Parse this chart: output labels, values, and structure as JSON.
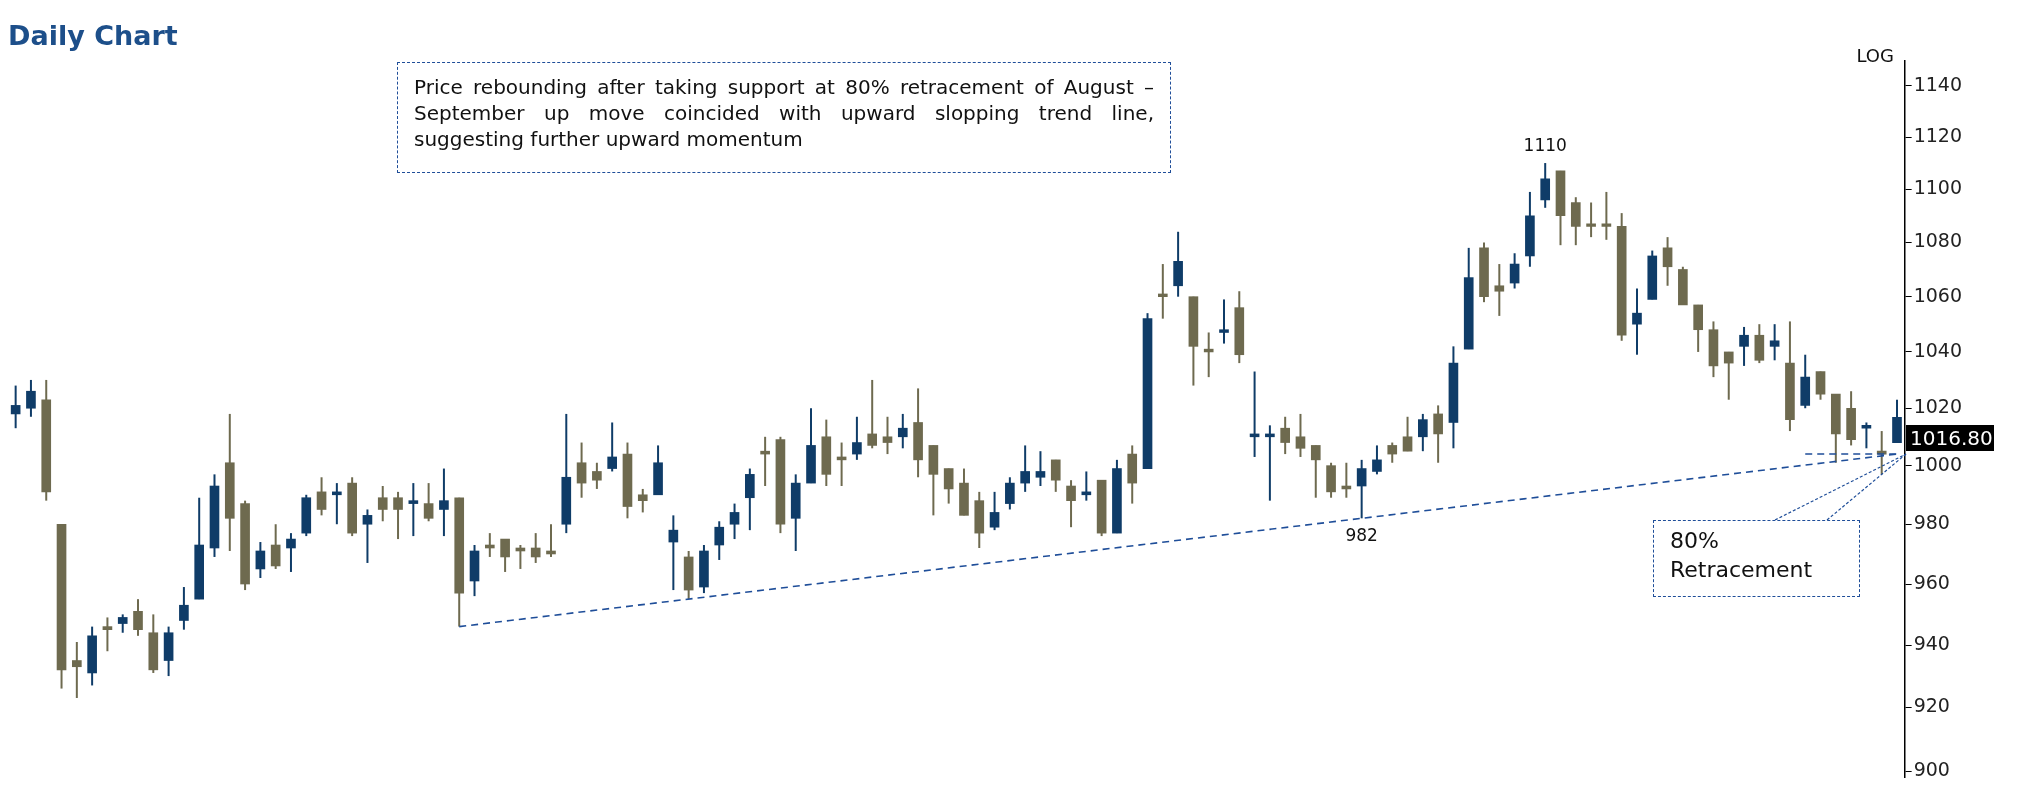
{
  "chart_data": {
    "type": "candlestick",
    "title": "Daily Chart",
    "categories": [
      null,
      null,
      null,
      null,
      null,
      null,
      null,
      null,
      null,
      null,
      null,
      null,
      null,
      null,
      null,
      null,
      null,
      null,
      null,
      null,
      null,
      null,
      null,
      null,
      null,
      null,
      null,
      null,
      null,
      null,
      null,
      null,
      null,
      null,
      null,
      null,
      null,
      null,
      null,
      null,
      null,
      null,
      null,
      null,
      null,
      null,
      null,
      null,
      null,
      null,
      null,
      null,
      null,
      null,
      null,
      null,
      null,
      null,
      null,
      null,
      null,
      null,
      null,
      null,
      null,
      null,
      null,
      null,
      null,
      null,
      null,
      null,
      null,
      null,
      null,
      null,
      null,
      null,
      null,
      null,
      null,
      null,
      null,
      null,
      null,
      null,
      null,
      null,
      null,
      null,
      null,
      null,
      null,
      null,
      null,
      null,
      null,
      null,
      null,
      null,
      null,
      null,
      null,
      null,
      null,
      null,
      null,
      null,
      null,
      null,
      null,
      null,
      null,
      null,
      null,
      null,
      null,
      null,
      null,
      null,
      null,
      null,
      null,
      null
    ],
    "ohlc": [
      [
        1018,
        1028,
        1013,
        1021
      ],
      [
        1020,
        1030,
        1017,
        1026
      ],
      [
        1023,
        1030,
        988,
        991
      ],
      [
        980,
        980,
        926,
        932
      ],
      [
        935,
        941,
        923,
        933
      ],
      [
        931,
        946,
        927,
        943
      ],
      [
        946,
        949,
        938,
        945
      ],
      [
        947,
        950,
        944,
        949
      ],
      [
        951,
        955,
        943,
        945
      ],
      [
        944,
        950,
        931,
        932
      ],
      [
        935,
        946,
        930,
        944
      ],
      [
        948,
        959,
        945,
        953
      ],
      [
        955,
        989,
        955,
        973
      ],
      [
        972,
        997,
        969,
        993
      ],
      [
        1001,
        1018,
        971,
        982
      ],
      [
        987,
        988,
        958,
        960
      ],
      [
        965,
        974,
        962,
        971
      ],
      [
        973,
        980,
        965,
        966
      ],
      [
        972,
        977,
        964,
        975
      ],
      [
        977,
        990,
        976,
        989
      ],
      [
        991,
        996,
        983,
        985
      ],
      [
        990,
        994,
        980,
        991
      ],
      [
        994,
        996,
        976,
        977
      ],
      [
        980,
        985,
        967,
        983
      ],
      [
        989,
        993,
        981,
        985
      ],
      [
        989,
        991,
        975,
        985
      ],
      [
        987,
        994,
        976,
        988
      ],
      [
        987,
        994,
        981,
        982
      ],
      [
        985,
        999,
        976,
        988
      ],
      [
        989,
        989,
        946,
        957
      ],
      [
        961,
        973,
        956,
        971
      ],
      [
        973,
        977,
        969,
        972
      ],
      [
        975,
        975,
        964,
        969
      ],
      [
        972,
        973,
        965,
        971
      ],
      [
        972,
        977,
        967,
        969
      ],
      [
        971,
        980,
        969,
        970
      ],
      [
        980,
        1018,
        977,
        996
      ],
      [
        1001,
        1008,
        989,
        994
      ],
      [
        998,
        1001,
        992,
        995
      ],
      [
        999,
        1015,
        998,
        1003
      ],
      [
        1004,
        1008,
        982,
        986
      ],
      [
        990,
        992,
        984,
        988
      ],
      [
        990,
        1007,
        990,
        1001
      ],
      [
        974,
        983,
        958,
        978
      ],
      [
        969,
        971,
        955,
        958
      ],
      [
        959,
        973,
        957,
        971
      ],
      [
        973,
        981,
        968,
        979
      ],
      [
        980,
        987,
        975,
        984
      ],
      [
        989,
        999,
        978,
        997
      ],
      [
        1005,
        1010,
        993,
        1004
      ],
      [
        1009,
        1010,
        977,
        980
      ],
      [
        982,
        997,
        971,
        994
      ],
      [
        994,
        1020,
        994,
        1007
      ],
      [
        1010,
        1016,
        993,
        997
      ],
      [
        1003,
        1008,
        993,
        1002
      ],
      [
        1004,
        1017,
        1002,
        1008
      ],
      [
        1011,
        1030,
        1006,
        1007
      ],
      [
        1010,
        1017,
        1004,
        1008
      ],
      [
        1010,
        1018,
        1006,
        1013
      ],
      [
        1015,
        1027,
        996,
        1002
      ],
      [
        1007,
        1007,
        983,
        997
      ],
      [
        999,
        999,
        987,
        992
      ],
      [
        994,
        999,
        983,
        983
      ],
      [
        988,
        991,
        972,
        977
      ],
      [
        979,
        991,
        978,
        984
      ],
      [
        987,
        996,
        985,
        994
      ],
      [
        994,
        1007,
        991,
        998
      ],
      [
        996,
        1005,
        993,
        998
      ],
      [
        1002,
        1002,
        991,
        995
      ],
      [
        993,
        995,
        979,
        988
      ],
      [
        990,
        998,
        988,
        991
      ],
      [
        995,
        995,
        976,
        977
      ],
      [
        977,
        1002,
        977,
        999
      ],
      [
        1004,
        1007,
        987,
        994
      ],
      [
        999,
        1054,
        999,
        1052
      ],
      [
        1061,
        1072,
        1052,
        1060
      ],
      [
        1064,
        1084,
        1060,
        1073
      ],
      [
        1060,
        1060,
        1028,
        1042
      ],
      [
        1041,
        1047,
        1031,
        1040
      ],
      [
        1047,
        1059,
        1043,
        1048
      ],
      [
        1056,
        1062,
        1036,
        1039
      ],
      [
        1010,
        1033,
        1003,
        1011
      ],
      [
        1010,
        1014,
        988,
        1011
      ],
      [
        1013,
        1017,
        1004,
        1008
      ],
      [
        1010,
        1018,
        1003,
        1006
      ],
      [
        1007,
        1007,
        989,
        1002
      ],
      [
        1000,
        1001,
        989,
        991
      ],
      [
        993,
        1001,
        989,
        992
      ],
      [
        993,
        1002,
        982,
        999
      ],
      [
        998,
        1007,
        997,
        1002
      ],
      [
        1007,
        1008,
        1001,
        1004
      ],
      [
        1010,
        1017,
        1005,
        1005
      ],
      [
        1010,
        1018,
        1005,
        1016
      ],
      [
        1018,
        1021,
        1001,
        1011
      ],
      [
        1015,
        1042,
        1006,
        1036
      ],
      [
        1041,
        1078,
        1041,
        1067
      ],
      [
        1078,
        1080,
        1058,
        1060
      ],
      [
        1064,
        1072,
        1053,
        1062
      ],
      [
        1065,
        1076,
        1063,
        1072
      ],
      [
        1075,
        1099,
        1071,
        1090
      ],
      [
        1096,
        1110,
        1093,
        1104
      ],
      [
        1107,
        1107,
        1079,
        1090
      ],
      [
        1095,
        1097,
        1079,
        1086
      ],
      [
        1087,
        1095,
        1082,
        1086
      ],
      [
        1087,
        1099,
        1081,
        1086
      ],
      [
        1086,
        1091,
        1044,
        1046
      ],
      [
        1050,
        1063,
        1039,
        1054
      ],
      [
        1059,
        1077,
        1059,
        1075
      ],
      [
        1078,
        1082,
        1064,
        1071
      ],
      [
        1070,
        1071,
        1057,
        1057
      ],
      [
        1057,
        1057,
        1040,
        1048
      ],
      [
        1048,
        1051,
        1031,
        1035
      ],
      [
        1040,
        1040,
        1023,
        1036
      ],
      [
        1042,
        1049,
        1035,
        1046
      ],
      [
        1046,
        1050,
        1036,
        1037
      ],
      [
        1042,
        1050,
        1037,
        1044
      ],
      [
        1036,
        1051,
        1012,
        1016
      ],
      [
        1021,
        1039,
        1020,
        1031
      ],
      [
        1033,
        1033,
        1023,
        1025
      ],
      [
        1025,
        1025,
        1001,
        1011
      ],
      [
        1020,
        1026,
        1007,
        1009
      ],
      [
        1013,
        1015,
        1006,
        1014
      ],
      [
        1005,
        1012,
        997,
        1004
      ],
      [
        1008,
        1023,
        1008,
        1016.8
      ]
    ],
    "colors": [
      "#0f3c68",
      "#0f3c68",
      "#6e6a4f",
      "#6e6a4f",
      "#6e6a4f",
      "#0f3c68",
      "#6e6a4f",
      "#0f3c68",
      "#6e6a4f",
      "#6e6a4f",
      "#0f3c68",
      "#0f3c68",
      "#0f3c68",
      "#0f3c68",
      "#6e6a4f",
      "#6e6a4f",
      "#0f3c68",
      "#6e6a4f",
      "#0f3c68",
      "#0f3c68",
      "#6e6a4f",
      "#0f3c68",
      "#6e6a4f",
      "#0f3c68",
      "#6e6a4f",
      "#6e6a4f",
      "#0f3c68",
      "#6e6a4f",
      "#0f3c68",
      "#6e6a4f",
      "#0f3c68",
      "#6e6a4f",
      "#6e6a4f",
      "#6e6a4f",
      "#6e6a4f",
      "#6e6a4f",
      "#0f3c68",
      "#6e6a4f",
      "#6e6a4f",
      "#0f3c68",
      "#6e6a4f",
      "#6e6a4f",
      "#0f3c68",
      "#0f3c68",
      "#6e6a4f",
      "#0f3c68",
      "#0f3c68",
      "#0f3c68",
      "#0f3c68",
      "#6e6a4f",
      "#6e6a4f",
      "#0f3c68",
      "#0f3c68",
      "#6e6a4f",
      "#6e6a4f",
      "#0f3c68",
      "#6e6a4f",
      "#6e6a4f",
      "#0f3c68",
      "#6e6a4f",
      "#6e6a4f",
      "#6e6a4f",
      "#6e6a4f",
      "#6e6a4f",
      "#0f3c68",
      "#0f3c68",
      "#0f3c68",
      "#0f3c68",
      "#6e6a4f",
      "#6e6a4f",
      "#0f3c68",
      "#6e6a4f",
      "#0f3c68",
      "#6e6a4f",
      "#0f3c68",
      "#6e6a4f",
      "#0f3c68",
      "#6e6a4f",
      "#6e6a4f",
      "#0f3c68",
      "#6e6a4f",
      "#0f3c68",
      "#0f3c68",
      "#6e6a4f",
      "#6e6a4f",
      "#6e6a4f",
      "#6e6a4f",
      "#6e6a4f",
      "#0f3c68",
      "#0f3c68",
      "#6e6a4f",
      "#6e6a4f",
      "#0f3c68",
      "#6e6a4f",
      "#0f3c68",
      "#0f3c68",
      "#6e6a4f",
      "#6e6a4f",
      "#0f3c68",
      "#0f3c68",
      "#0f3c68",
      "#6e6a4f",
      "#6e6a4f",
      "#6e6a4f",
      "#6e6a4f",
      "#6e6a4f",
      "#0f3c68",
      "#0f3c68",
      "#6e6a4f",
      "#6e6a4f",
      "#6e6a4f",
      "#6e6a4f",
      "#6e6a4f",
      "#0f3c68",
      "#6e6a4f",
      "#0f3c68",
      "#6e6a4f",
      "#0f3c68",
      "#6e6a4f",
      "#6e6a4f",
      "#6e6a4f",
      "#0f3c68",
      "#6e6a4f",
      "#0f3c68"
    ],
    "series": [
      {
        "type": "line",
        "color": "#1f4e99",
        "line_style": "dashed",
        "marker": "none",
        "values": [
          null,
          null,
          null,
          null,
          null,
          null,
          null,
          null,
          null,
          null,
          null,
          null,
          null,
          null,
          null,
          null,
          null,
          null,
          null,
          null,
          null,
          null,
          null,
          null,
          null,
          null,
          null,
          null,
          null,
          946,
          null,
          null,
          null,
          null,
          null,
          null,
          null,
          null,
          null,
          null,
          null,
          null,
          null,
          null,
          null,
          null,
          null,
          null,
          null,
          null,
          null,
          null,
          null,
          null,
          null,
          null,
          null,
          null,
          null,
          null,
          null,
          null,
          null,
          null,
          null,
          null,
          null,
          null,
          null,
          null,
          null,
          null,
          null,
          null,
          null,
          null,
          null,
          null,
          null,
          null,
          null,
          null,
          null,
          null,
          null,
          null,
          null,
          null,
          982,
          null,
          null,
          null,
          null,
          null,
          null,
          null,
          null,
          null,
          null,
          null,
          null,
          null,
          null,
          null,
          null,
          null,
          null,
          null,
          null,
          null,
          null,
          null,
          null,
          null,
          null,
          null,
          null,
          null,
          null,
          null,
          null,
          null,
          null,
          1004
        ]
      },
      {
        "type": "line",
        "color": "#1f4e99",
        "line_style": "dashed",
        "marker": "none",
        "values": [
          null,
          null,
          null,
          null,
          null,
          null,
          null,
          null,
          null,
          null,
          null,
          null,
          null,
          null,
          null,
          null,
          null,
          null,
          null,
          null,
          null,
          null,
          null,
          null,
          null,
          null,
          null,
          null,
          null,
          null,
          null,
          null,
          null,
          null,
          null,
          null,
          null,
          null,
          null,
          null,
          null,
          null,
          null,
          null,
          null,
          null,
          null,
          null,
          null,
          null,
          null,
          null,
          null,
          null,
          null,
          null,
          null,
          null,
          null,
          null,
          null,
          null,
          null,
          null,
          null,
          null,
          null,
          null,
          null,
          null,
          null,
          null,
          null,
          null,
          null,
          null,
          null,
          null,
          null,
          null,
          null,
          null,
          null,
          null,
          null,
          null,
          null,
          null,
          null,
          null,
          null,
          null,
          null,
          null,
          null,
          null,
          null,
          null,
          null,
          null,
          null,
          null,
          null,
          null,
          null,
          null,
          null,
          null,
          null,
          null,
          null,
          null,
          null,
          null,
          null,
          null,
          null,
          1004,
          1004,
          1004,
          1004,
          1004,
          1004,
          1004
        ]
      }
    ],
    "ylim": [
      898,
      1150
    ],
    "yticks": [
      900,
      920,
      940,
      960,
      980,
      1000,
      1020,
      1040,
      1060,
      1080,
      1100,
      1120,
      1140
    ],
    "log": true,
    "tick_labels": "y",
    "annotations": [
      "Price rebounding after taking support at 80% retracement of August –September up move coincided with upward slopping trend line, suggesting further upward momentum",
      {
        "text": "1110",
        "y": 1110
      },
      {
        "text": "982",
        "y": 982
      },
      "80% Retracement",
      "1016.80",
      "LOG"
    ]
  }
}
